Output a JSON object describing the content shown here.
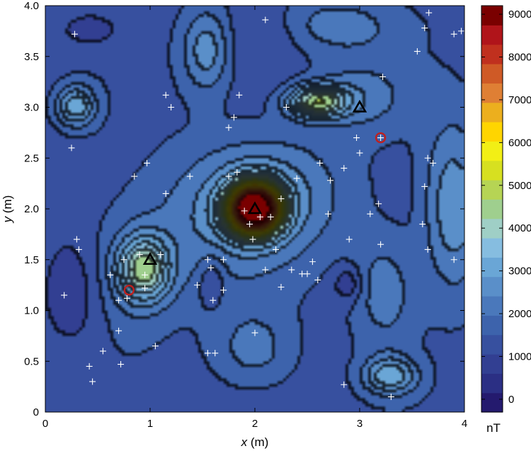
{
  "chart_data": {
    "type": "heatmap",
    "subtype": "filled-contour",
    "xlabel_var": "x",
    "xlabel_unit": " (m)",
    "ylabel_var": "y",
    "ylabel_unit": " (m)",
    "xlim": [
      0,
      4
    ],
    "ylim": [
      0,
      4
    ],
    "x_ticks": [
      "0",
      "1",
      "2",
      "3",
      "4"
    ],
    "y_ticks": [
      "0",
      "0.5",
      "1.0",
      "1.5",
      "2.0",
      "2.5",
      "3.0",
      "3.5",
      "4.0"
    ],
    "colorbar": {
      "label": "nT",
      "range": [
        -300,
        9200
      ],
      "ticks": [
        "0",
        "1000",
        "2000",
        "3000",
        "4000",
        "5000",
        "6000",
        "7000",
        "8000",
        "9000"
      ],
      "colors": [
        "#241a6e",
        "#2b2f84",
        "#323f92",
        "#37509f",
        "#3d63ac",
        "#4a78bb",
        "#5a8fc9",
        "#6aa6d6",
        "#86bde0",
        "#9fcfc6",
        "#9fcf8e",
        "#b6d454",
        "#d7e020",
        "#f2ef15",
        "#ffd500",
        "#ecaf1e",
        "#df7f34",
        "#cf5a26",
        "#c0301e",
        "#b0141a",
        "#7a0000"
      ]
    },
    "anomalies": [
      {
        "x": 2.0,
        "y": 2.0,
        "value": 9000
      },
      {
        "x": 2.6,
        "y": 3.05,
        "value": 5400
      },
      {
        "x": 0.85,
        "y": 1.4,
        "value": 5000
      }
    ],
    "triangles": [
      {
        "x": 1.0,
        "y": 1.5
      },
      {
        "x": 2.0,
        "y": 2.0
      },
      {
        "x": 3.0,
        "y": 3.0
      }
    ],
    "circles": [
      {
        "x": 0.8,
        "y": 1.2
      },
      {
        "x": 3.2,
        "y": 2.7
      }
    ],
    "samples": [
      [
        0.28,
        3.72
      ],
      [
        0.42,
        0.45
      ],
      [
        0.45,
        0.3
      ],
      [
        0.55,
        0.6
      ],
      [
        0.7,
        1.1
      ],
      [
        0.7,
        0.8
      ],
      [
        0.72,
        0.47
      ],
      [
        0.78,
        1.12
      ],
      [
        0.75,
        1.5
      ],
      [
        0.95,
        1.35
      ],
      [
        1.05,
        0.65
      ],
      [
        1.1,
        1.55
      ],
      [
        1.15,
        3.12
      ],
      [
        1.2,
        3.0
      ],
      [
        1.15,
        2.15
      ],
      [
        1.38,
        2.32
      ],
      [
        1.55,
        1.5
      ],
      [
        1.58,
        1.42
      ],
      [
        1.6,
        1.1
      ],
      [
        1.55,
        0.58
      ],
      [
        1.75,
        2.8
      ],
      [
        1.85,
        3.12
      ],
      [
        2.1,
        1.4
      ],
      [
        2.2,
        1.6
      ],
      [
        2.25,
        1.23
      ],
      [
        2.4,
        2.3
      ],
      [
        2.35,
        1.4
      ],
      [
        2.6,
        1.3
      ],
      [
        2.7,
        1.95
      ],
      [
        2.62,
        2.45
      ],
      [
        2.72,
        2.28
      ],
      [
        2.85,
        2.4
      ],
      [
        3.0,
        2.55
      ],
      [
        3.18,
        2.05
      ],
      [
        3.2,
        2.7
      ],
      [
        3.22,
        3.3
      ],
      [
        3.6,
        1.85
      ],
      [
        3.62,
        2.22
      ],
      [
        3.7,
        2.45
      ],
      [
        3.65,
        2.5
      ],
      [
        3.65,
        1.6
      ],
      [
        3.9,
        1.5
      ],
      [
        3.2,
        1.65
      ],
      [
        3.1,
        1.95
      ],
      [
        3.55,
        3.55
      ],
      [
        3.62,
        3.78
      ],
      [
        3.66,
        3.93
      ],
      [
        3.9,
        3.72
      ],
      [
        3.97,
        3.75
      ],
      [
        2.1,
        3.86
      ],
      [
        2.85,
        0.27
      ],
      [
        3.3,
        0.15
      ],
      [
        2.55,
        1.48
      ],
      [
        2.45,
        1.36
      ],
      [
        0.18,
        1.15
      ],
      [
        0.3,
        1.7
      ],
      [
        0.32,
        1.6
      ],
      [
        0.25,
        2.6
      ],
      [
        0.9,
        1.55
      ],
      [
        0.62,
        1.35
      ],
      [
        0.95,
        1.22
      ],
      [
        0.85,
        2.32
      ],
      [
        0.97,
        2.45
      ],
      [
        1.45,
        1.25
      ],
      [
        1.7,
        1.2
      ],
      [
        1.62,
        0.58
      ],
      [
        1.7,
        1.5
      ],
      [
        1.8,
        2.9
      ],
      [
        2.0,
        0.78
      ],
      [
        1.75,
        2.32
      ],
      [
        1.83,
        2.36
      ],
      [
        1.98,
        1.7
      ],
      [
        1.9,
        1.98
      ],
      [
        2.05,
        1.92
      ],
      [
        1.95,
        1.85
      ],
      [
        2.25,
        2.1
      ],
      [
        2.15,
        1.92
      ],
      [
        2.9,
        1.7
      ],
      [
        2.5,
        1.36
      ],
      [
        2.97,
        2.7
      ],
      [
        2.3,
        3.0
      ]
    ]
  }
}
